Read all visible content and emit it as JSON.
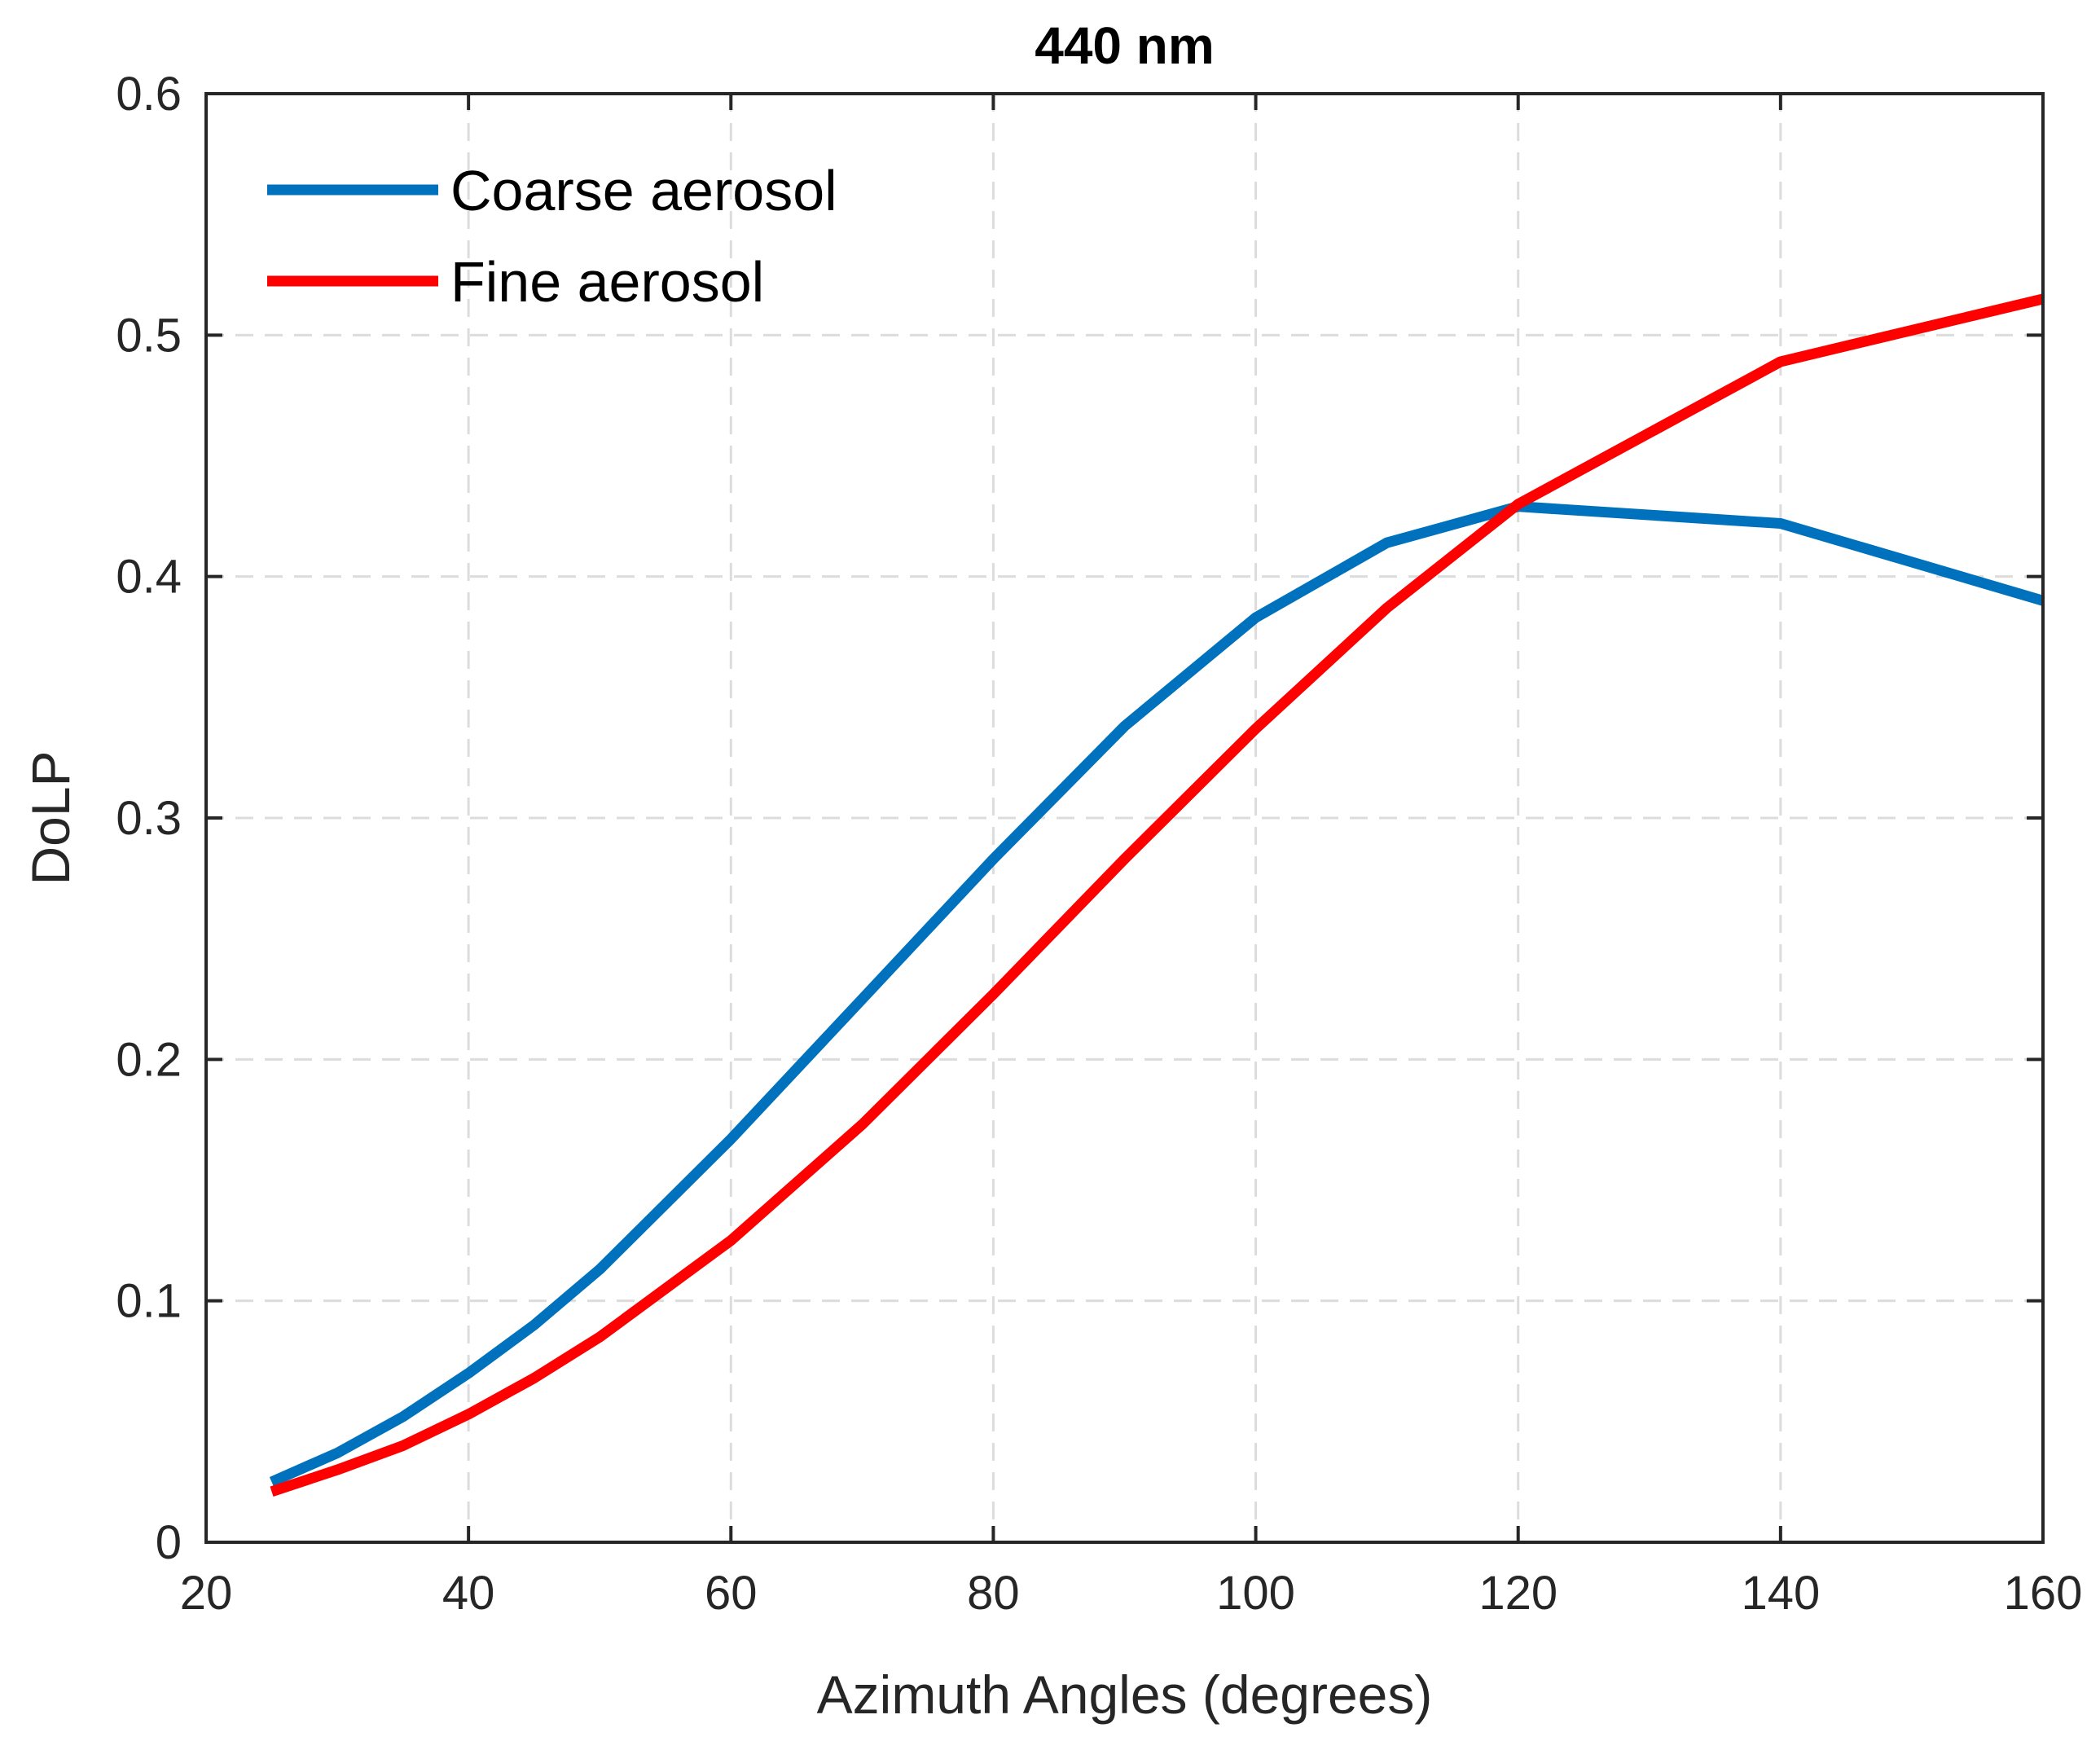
{
  "chart_data": {
    "type": "line",
    "title": "440 nm",
    "xlabel": "Azimuth Angles (degrees)",
    "ylabel": "DoLP",
    "xlim": [
      20,
      160
    ],
    "ylim": [
      0,
      0.6
    ],
    "xticks": [
      20,
      40,
      60,
      80,
      100,
      120,
      140,
      160
    ],
    "yticks": [
      0,
      0.1,
      0.2,
      0.3,
      0.4,
      0.5,
      0.6
    ],
    "xtick_labels": [
      "20",
      "40",
      "60",
      "80",
      "100",
      "120",
      "140",
      "160"
    ],
    "ytick_labels": [
      "0",
      "0.1",
      "0.2",
      "0.3",
      "0.4",
      "0.5",
      "0.6"
    ],
    "grid": true,
    "legend_position": "top-left",
    "series": [
      {
        "name": "Coarse aerosol",
        "color": "#0072BD",
        "x": [
          25,
          30,
          35,
          40,
          45,
          50,
          60,
          70,
          80,
          90,
          100,
          110,
          120,
          140,
          160
        ],
        "y": [
          0.025,
          0.037,
          0.052,
          0.07,
          0.09,
          0.113,
          0.167,
          0.225,
          0.283,
          0.338,
          0.383,
          0.414,
          0.429,
          0.422,
          0.39
        ]
      },
      {
        "name": "Fine aerosol",
        "color": "#FF0000",
        "x": [
          25,
          30,
          35,
          40,
          45,
          50,
          60,
          70,
          80,
          90,
          100,
          110,
          120,
          140,
          160
        ],
        "y": [
          0.021,
          0.03,
          0.04,
          0.053,
          0.068,
          0.085,
          0.125,
          0.173,
          0.227,
          0.283,
          0.337,
          0.387,
          0.43,
          0.489,
          0.515
        ]
      }
    ]
  }
}
